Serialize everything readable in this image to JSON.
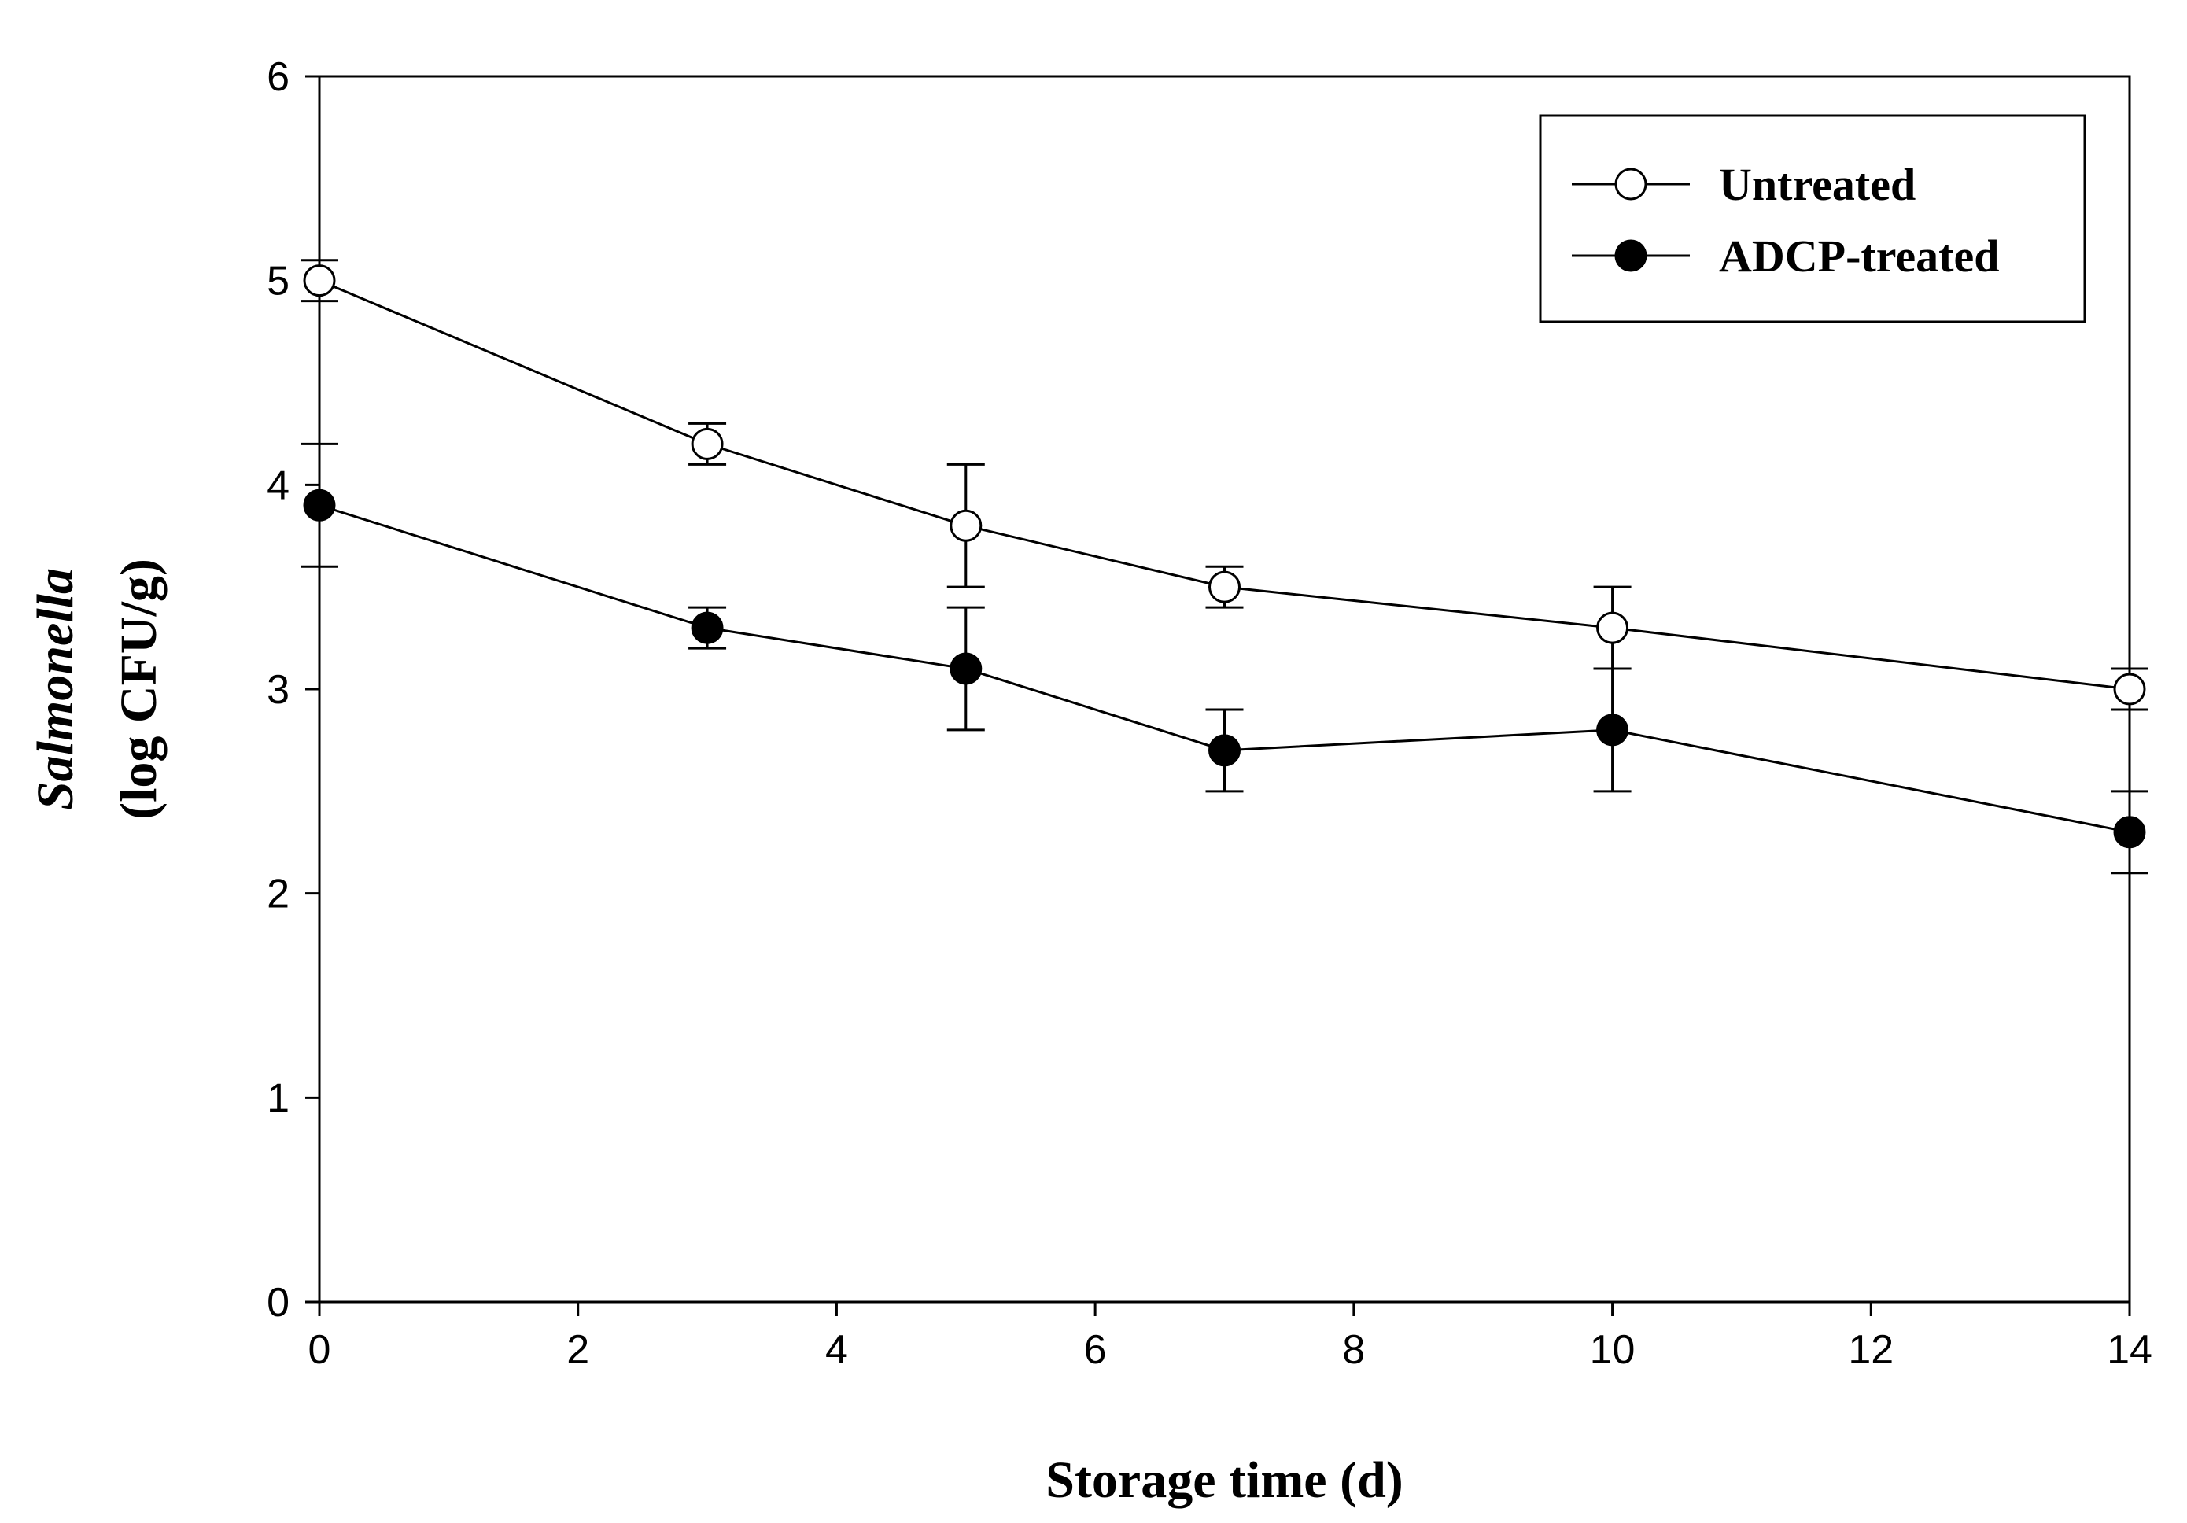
{
  "chart_data": {
    "type": "line",
    "title": "",
    "xlabel": "Storage time (d)",
    "ylabel_italic": "Salmonella",
    "ylabel_unit": "(log CFU/g)",
    "xlim": [
      0,
      14
    ],
    "ylim": [
      0,
      6
    ],
    "xticks": [
      0,
      2,
      4,
      6,
      8,
      10,
      12,
      14
    ],
    "yticks": [
      0,
      1,
      2,
      3,
      4,
      5,
      6
    ],
    "x": [
      0,
      3,
      5,
      7,
      10,
      14
    ],
    "grid": false,
    "legend_position": "top-right",
    "series": [
      {
        "name": "Untreated",
        "marker": "open-circle",
        "values": [
          5.0,
          4.2,
          3.8,
          3.5,
          3.3,
          3.0
        ],
        "error": [
          0.1,
          0.1,
          0.3,
          0.1,
          0.2,
          0.1
        ]
      },
      {
        "name": "ADCP-treated",
        "marker": "filled-circle",
        "values": [
          3.9,
          3.3,
          3.1,
          2.7,
          2.8,
          2.3
        ],
        "error": [
          0.3,
          0.1,
          0.3,
          0.2,
          0.3,
          0.2
        ]
      }
    ]
  },
  "colors": {
    "line": "#000000",
    "open_marker_fill": "#ffffff",
    "filled_marker_fill": "#000000"
  }
}
